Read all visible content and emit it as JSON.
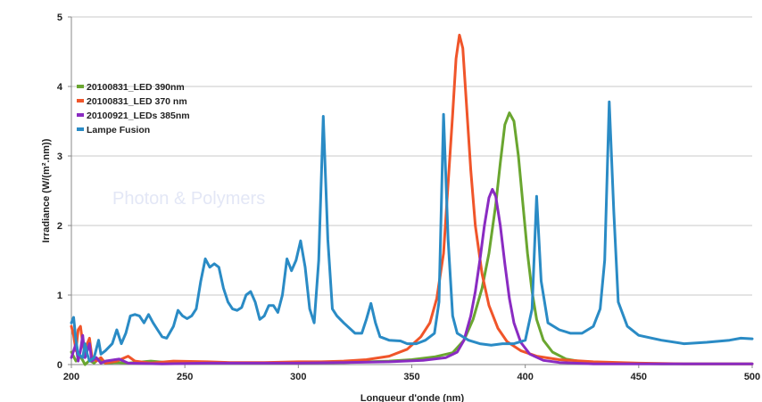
{
  "chart_data": {
    "type": "line",
    "title": "",
    "xlabel": "Longueur d'onde (nm)",
    "ylabel": "Irradiance (W/(m².nm))",
    "xlim": [
      200,
      500
    ],
    "ylim": [
      0,
      5
    ],
    "xticks": [
      200,
      250,
      300,
      350,
      400,
      450,
      500
    ],
    "yticks": [
      0,
      1,
      2,
      3,
      4,
      5
    ],
    "grid": {
      "horizontal": true,
      "vertical": false
    },
    "legend_position": "top-left",
    "watermark": "Photon & Polymers",
    "series": [
      {
        "name": "20100831_LED 390nm",
        "color": "#6aa630",
        "points": [
          [
            200,
            0.18
          ],
          [
            202,
            0.05
          ],
          [
            204,
            0.12
          ],
          [
            206,
            0.0
          ],
          [
            208,
            0.06
          ],
          [
            210,
            0.02
          ],
          [
            212,
            0.08
          ],
          [
            215,
            0.02
          ],
          [
            220,
            0.03
          ],
          [
            225,
            0.02
          ],
          [
            235,
            0.05
          ],
          [
            245,
            0.02
          ],
          [
            260,
            0.03
          ],
          [
            280,
            0.02
          ],
          [
            300,
            0.02
          ],
          [
            320,
            0.03
          ],
          [
            340,
            0.05
          ],
          [
            350,
            0.07
          ],
          [
            360,
            0.11
          ],
          [
            368,
            0.17
          ],
          [
            373,
            0.35
          ],
          [
            377,
            0.65
          ],
          [
            381,
            1.1
          ],
          [
            384,
            1.6
          ],
          [
            387,
            2.3
          ],
          [
            389,
            2.9
          ],
          [
            391,
            3.45
          ],
          [
            393,
            3.62
          ],
          [
            395,
            3.5
          ],
          [
            397,
            3.0
          ],
          [
            399,
            2.3
          ],
          [
            401,
            1.6
          ],
          [
            403,
            1.05
          ],
          [
            405,
            0.65
          ],
          [
            408,
            0.35
          ],
          [
            412,
            0.18
          ],
          [
            418,
            0.08
          ],
          [
            425,
            0.04
          ],
          [
            440,
            0.02
          ],
          [
            460,
            0.01
          ],
          [
            500,
            0.01
          ]
        ]
      },
      {
        "name": "20100831_LED 370 nm",
        "color": "#f0552a",
        "points": [
          [
            200,
            0.55
          ],
          [
            201,
            0.42
          ],
          [
            202,
            0.2
          ],
          [
            203,
            0.5
          ],
          [
            204,
            0.55
          ],
          [
            205,
            0.3
          ],
          [
            206,
            0.15
          ],
          [
            207,
            0.3
          ],
          [
            208,
            0.38
          ],
          [
            209,
            0.12
          ],
          [
            211,
            0.05
          ],
          [
            213,
            0.1
          ],
          [
            215,
            0.02
          ],
          [
            220,
            0.05
          ],
          [
            225,
            0.12
          ],
          [
            228,
            0.05
          ],
          [
            235,
            0.02
          ],
          [
            245,
            0.05
          ],
          [
            260,
            0.04
          ],
          [
            270,
            0.03
          ],
          [
            285,
            0.03
          ],
          [
            300,
            0.04
          ],
          [
            310,
            0.04
          ],
          [
            320,
            0.05
          ],
          [
            330,
            0.07
          ],
          [
            340,
            0.12
          ],
          [
            348,
            0.22
          ],
          [
            354,
            0.4
          ],
          [
            358,
            0.6
          ],
          [
            361,
            0.95
          ],
          [
            364,
            1.6
          ],
          [
            366,
            2.6
          ],
          [
            368,
            3.6
          ],
          [
            369.5,
            4.4
          ],
          [
            371,
            4.74
          ],
          [
            372.5,
            4.55
          ],
          [
            374,
            3.8
          ],
          [
            376,
            2.8
          ],
          [
            378,
            2.0
          ],
          [
            381,
            1.3
          ],
          [
            384,
            0.85
          ],
          [
            388,
            0.52
          ],
          [
            392,
            0.33
          ],
          [
            398,
            0.2
          ],
          [
            405,
            0.12
          ],
          [
            415,
            0.07
          ],
          [
            430,
            0.04
          ],
          [
            450,
            0.02
          ],
          [
            470,
            0.01
          ],
          [
            500,
            0.01
          ]
        ]
      },
      {
        "name": "20100921_LEDs 385nm",
        "color": "#8a2bc2",
        "points": [
          [
            200,
            0.1
          ],
          [
            202,
            0.3
          ],
          [
            203,
            0.05
          ],
          [
            204,
            0.2
          ],
          [
            205,
            0.42
          ],
          [
            206,
            0.1
          ],
          [
            207,
            0.2
          ],
          [
            208,
            0.3
          ],
          [
            209,
            0.05
          ],
          [
            211,
            0.1
          ],
          [
            213,
            0.02
          ],
          [
            215,
            0.05
          ],
          [
            221,
            0.08
          ],
          [
            225,
            0.02
          ],
          [
            240,
            0.01
          ],
          [
            260,
            0.02
          ],
          [
            280,
            0.02
          ],
          [
            300,
            0.02
          ],
          [
            320,
            0.03
          ],
          [
            340,
            0.04
          ],
          [
            355,
            0.06
          ],
          [
            365,
            0.1
          ],
          [
            370,
            0.18
          ],
          [
            373,
            0.35
          ],
          [
            376,
            0.7
          ],
          [
            378,
            1.05
          ],
          [
            380,
            1.5
          ],
          [
            382,
            2.0
          ],
          [
            384,
            2.4
          ],
          [
            385.5,
            2.52
          ],
          [
            387,
            2.42
          ],
          [
            389,
            2.0
          ],
          [
            391,
            1.45
          ],
          [
            393,
            0.95
          ],
          [
            395,
            0.6
          ],
          [
            398,
            0.32
          ],
          [
            402,
            0.15
          ],
          [
            408,
            0.06
          ],
          [
            415,
            0.03
          ],
          [
            430,
            0.01
          ],
          [
            500,
            0.01
          ]
        ]
      },
      {
        "name": "Lampe Fusion",
        "color": "#2a8bc5",
        "points": [
          [
            200,
            0.6
          ],
          [
            201,
            0.68
          ],
          [
            202,
            0.35
          ],
          [
            203,
            0.15
          ],
          [
            205,
            0.1
          ],
          [
            206,
            0.3
          ],
          [
            207,
            0.15
          ],
          [
            208,
            0.05
          ],
          [
            210,
            0.1
          ],
          [
            212,
            0.35
          ],
          [
            213,
            0.15
          ],
          [
            215,
            0.2
          ],
          [
            218,
            0.3
          ],
          [
            220,
            0.5
          ],
          [
            222,
            0.3
          ],
          [
            224,
            0.45
          ],
          [
            226,
            0.7
          ],
          [
            228,
            0.72
          ],
          [
            230,
            0.7
          ],
          [
            232,
            0.6
          ],
          [
            234,
            0.72
          ],
          [
            236,
            0.6
          ],
          [
            238,
            0.5
          ],
          [
            240,
            0.4
          ],
          [
            242,
            0.38
          ],
          [
            245,
            0.55
          ],
          [
            247,
            0.78
          ],
          [
            249,
            0.7
          ],
          [
            251,
            0.66
          ],
          [
            253,
            0.7
          ],
          [
            255,
            0.8
          ],
          [
            257,
            1.2
          ],
          [
            259,
            1.52
          ],
          [
            261,
            1.4
          ],
          [
            263,
            1.45
          ],
          [
            265,
            1.4
          ],
          [
            267,
            1.1
          ],
          [
            269,
            0.9
          ],
          [
            271,
            0.8
          ],
          [
            273,
            0.78
          ],
          [
            275,
            0.82
          ],
          [
            277,
            1.0
          ],
          [
            279,
            1.05
          ],
          [
            281,
            0.9
          ],
          [
            283,
            0.65
          ],
          [
            285,
            0.7
          ],
          [
            287,
            0.85
          ],
          [
            289,
            0.85
          ],
          [
            291,
            0.75
          ],
          [
            293,
            1.0
          ],
          [
            295,
            1.52
          ],
          [
            297,
            1.35
          ],
          [
            299,
            1.5
          ],
          [
            301,
            1.78
          ],
          [
            303,
            1.4
          ],
          [
            305,
            0.8
          ],
          [
            307,
            0.6
          ],
          [
            309,
            1.5
          ],
          [
            311,
            3.57
          ],
          [
            313,
            1.8
          ],
          [
            315,
            0.8
          ],
          [
            317,
            0.7
          ],
          [
            320,
            0.6
          ],
          [
            325,
            0.45
          ],
          [
            328,
            0.45
          ],
          [
            330,
            0.65
          ],
          [
            332,
            0.88
          ],
          [
            334,
            0.6
          ],
          [
            336,
            0.4
          ],
          [
            340,
            0.35
          ],
          [
            345,
            0.34
          ],
          [
            348,
            0.3
          ],
          [
            352,
            0.3
          ],
          [
            356,
            0.35
          ],
          [
            360,
            0.45
          ],
          [
            362,
            0.9
          ],
          [
            364,
            3.6
          ],
          [
            366,
            1.8
          ],
          [
            368,
            0.7
          ],
          [
            370,
            0.45
          ],
          [
            375,
            0.35
          ],
          [
            380,
            0.3
          ],
          [
            385,
            0.28
          ],
          [
            390,
            0.3
          ],
          [
            395,
            0.3
          ],
          [
            400,
            0.35
          ],
          [
            403,
            0.8
          ],
          [
            405,
            2.42
          ],
          [
            407,
            1.2
          ],
          [
            410,
            0.6
          ],
          [
            415,
            0.5
          ],
          [
            420,
            0.45
          ],
          [
            425,
            0.45
          ],
          [
            430,
            0.55
          ],
          [
            433,
            0.8
          ],
          [
            435,
            1.5
          ],
          [
            437,
            3.78
          ],
          [
            439,
            2.2
          ],
          [
            441,
            0.9
          ],
          [
            445,
            0.55
          ],
          [
            450,
            0.42
          ],
          [
            460,
            0.35
          ],
          [
            470,
            0.3
          ],
          [
            480,
            0.32
          ],
          [
            490,
            0.35
          ],
          [
            495,
            0.38
          ],
          [
            500,
            0.37
          ]
        ]
      }
    ]
  }
}
